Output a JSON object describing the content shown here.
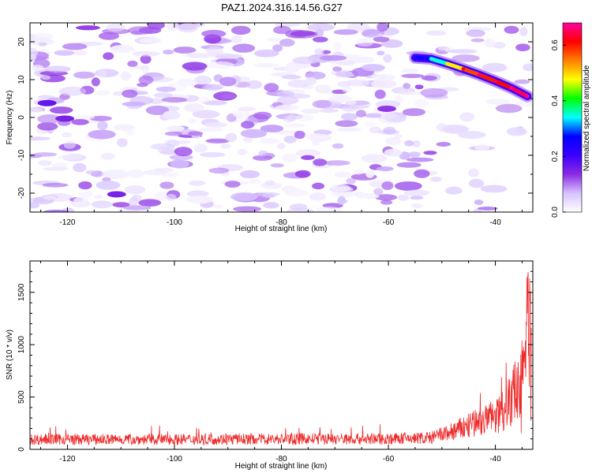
{
  "title": "PAZ1.2024.316.14.56.G27",
  "chart_data": [
    {
      "type": "heatmap",
      "xlabel": "Height of straight line (km)",
      "ylabel": "Frequency (Hz)",
      "xlim": [
        -127,
        -33
      ],
      "ylim": [
        -25,
        25
      ],
      "x_ticks": [
        -120,
        -100,
        -80,
        -60,
        -40
      ],
      "y_ticks": [
        -20,
        -10,
        0,
        10,
        20
      ],
      "colorbar": {
        "label": "Normalized spectral amplitude",
        "range": [
          0,
          0.68
        ],
        "ticks": [
          0.0,
          0.2,
          0.4,
          0.6
        ],
        "colormap": [
          "#ffffff",
          "#d6c2ff",
          "#8a2be2",
          "#3b00ff",
          "#0000ff",
          "#00ffff",
          "#00ff00",
          "#ffff00",
          "#ff8000",
          "#ff0000",
          "#ff00a0"
        ]
      },
      "peak_track": [
        {
          "x": -55,
          "y": 15.8,
          "v": 0.22
        },
        {
          "x": -52,
          "y": 15.5,
          "v": 0.28
        },
        {
          "x": -49,
          "y": 14.2,
          "v": 0.42
        },
        {
          "x": -46,
          "y": 12.8,
          "v": 0.55
        },
        {
          "x": -43,
          "y": 11.3,
          "v": 0.6
        },
        {
          "x": -40,
          "y": 9.6,
          "v": 0.6
        },
        {
          "x": -37,
          "y": 7.8,
          "v": 0.62
        },
        {
          "x": -34,
          "y": 5.6,
          "v": 0.68
        }
      ],
      "hotspots": [
        {
          "x": -123.8,
          "y": 3.8,
          "v": 0.17
        },
        {
          "x": -120.5,
          "y": -0.3,
          "v": 0.15
        },
        {
          "x": -110.8,
          "y": -20.3,
          "v": 0.15
        },
        {
          "x": -60.3,
          "y": 2.3,
          "v": 0.13
        }
      ],
      "grid": false
    },
    {
      "type": "line",
      "xlabel": "Height of straight line (km)",
      "ylabel": "SNR (10 * v/v)",
      "xlim": [
        -127,
        -33
      ],
      "ylim": [
        0,
        1800
      ],
      "x_ticks": [
        -120,
        -100,
        -80,
        -60,
        -40
      ],
      "y_ticks": [
        0,
        500,
        1000,
        1500
      ],
      "color": "#ee2a2a",
      "envelope": [
        {
          "x": -127,
          "y": 95
        },
        {
          "x": -100,
          "y": 95
        },
        {
          "x": -80,
          "y": 100
        },
        {
          "x": -60,
          "y": 100
        },
        {
          "x": -52,
          "y": 110
        },
        {
          "x": -48,
          "y": 170
        },
        {
          "x": -44,
          "y": 240
        },
        {
          "x": -40,
          "y": 310
        },
        {
          "x": -37,
          "y": 480
        },
        {
          "x": -35.5,
          "y": 700
        },
        {
          "x": -34.5,
          "y": 900
        },
        {
          "x": -33.8,
          "y": 1300
        },
        {
          "x": -33.3,
          "y": 1750
        }
      ],
      "grid": false
    }
  ]
}
